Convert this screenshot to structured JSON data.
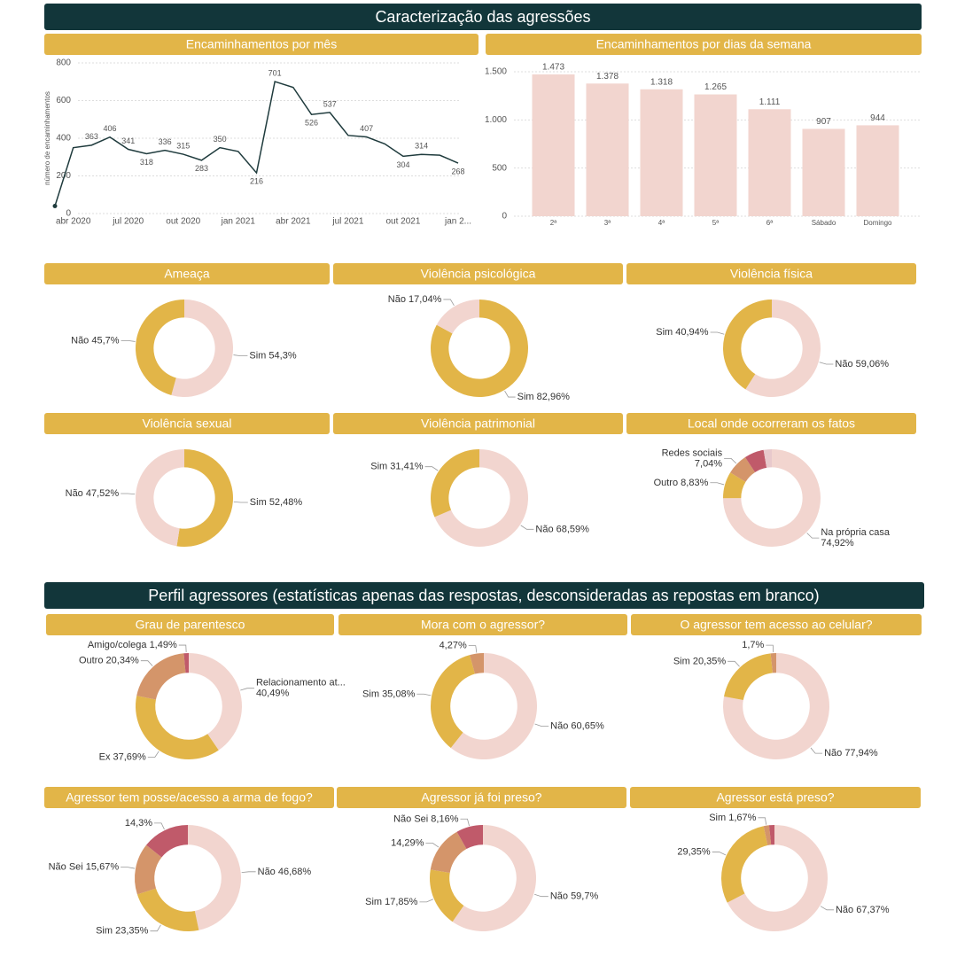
{
  "sections": [
    "Caracterização das agressões",
    "Perfil agressores (estatísticas apenas das respostas, desconsideradas as repostas em branco)"
  ],
  "chart_data": [
    {
      "type": "line",
      "title": "Encaminhamentos por mês",
      "ylabel": "número de encaminhamentos",
      "categories": [
        null,
        "abr 2020",
        null,
        null,
        "jul 2020",
        null,
        null,
        "out 2020",
        null,
        null,
        "jan 2021",
        null,
        null,
        "abr 2021",
        null,
        null,
        "jul 2021",
        null,
        null,
        "out 2021",
        null,
        null,
        "jan 2..."
      ],
      "values": [
        40,
        350,
        363,
        406,
        341,
        318,
        336,
        315,
        283,
        350,
        330,
        216,
        701,
        670,
        526,
        537,
        415,
        407,
        370,
        304,
        314,
        310,
        268
      ],
      "value_labels": [
        null,
        null,
        "363",
        "406",
        "341",
        "318",
        "336",
        "315",
        "283",
        "350",
        null,
        "216",
        "701",
        null,
        "526",
        "537",
        null,
        "407",
        null,
        "304",
        "314",
        null,
        "268"
      ],
      "ylim": [
        0,
        800
      ],
      "yticks": [
        0,
        200,
        400,
        600,
        800
      ],
      "grid": true,
      "color": "#1f3b3d"
    },
    {
      "type": "bar",
      "title": "Encaminhamentos por dias da semana",
      "categories": [
        "2ª",
        "3ª",
        "4ª",
        "5ª",
        "6ª",
        "Sábado",
        "Domingo"
      ],
      "values": [
        1473,
        1378,
        1318,
        1265,
        1111,
        907,
        944
      ],
      "value_labels": [
        "1.473",
        "1.378",
        "1.318",
        "1.265",
        "1.111",
        "907",
        "944"
      ],
      "ylim": [
        0,
        1500
      ],
      "yticks": [
        0,
        500,
        {
          "value": 1000,
          "label": "1.000"
        },
        {
          "value": 1500,
          "label": "1.500"
        }
      ],
      "grid": true,
      "color": "#f2d5cf"
    },
    {
      "type": "pie",
      "donut": true,
      "title": "Ameaça",
      "categories": [
        "Sim",
        "Não"
      ],
      "values": [
        54.3,
        45.7
      ],
      "value_labels": [
        "54,3%",
        "45,7%"
      ],
      "colors": [
        "#f2d5cf",
        "#e2b548"
      ]
    },
    {
      "type": "pie",
      "donut": true,
      "title": "Violência psicológica",
      "categories": [
        "Sim",
        "Não"
      ],
      "values": [
        82.96,
        17.04
      ],
      "value_labels": [
        "82,96%",
        "17,04%"
      ],
      "colors": [
        "#e2b548",
        "#f2d5cf"
      ]
    },
    {
      "type": "pie",
      "donut": true,
      "title": "Violência física",
      "categories": [
        "Não",
        "Sim"
      ],
      "values": [
        59.06,
        40.94
      ],
      "value_labels": [
        "59,06%",
        "40,94%"
      ],
      "colors": [
        "#f2d5cf",
        "#e2b548"
      ]
    },
    {
      "type": "pie",
      "donut": true,
      "title": "Violência sexual",
      "categories": [
        "Sim",
        "Não"
      ],
      "values": [
        52.48,
        47.52
      ],
      "value_labels": [
        "52,48%",
        "47,52%"
      ],
      "colors": [
        "#e2b548",
        "#f2d5cf"
      ]
    },
    {
      "type": "pie",
      "donut": true,
      "title": "Violência patrimonial",
      "categories": [
        "Não",
        "Sim"
      ],
      "values": [
        68.59,
        31.41
      ],
      "value_labels": [
        "68,59%",
        "31,41%"
      ],
      "colors": [
        "#f2d5cf",
        "#e2b548"
      ]
    },
    {
      "type": "pie",
      "donut": true,
      "title": "Local onde ocorreram os fatos",
      "categories": [
        "Na própria casa",
        "Outro",
        "Redes sociais",
        null,
        null
      ],
      "values": [
        74.92,
        8.83,
        7.04,
        6.5,
        2.71
      ],
      "value_labels": [
        "74,92%",
        "8,83%",
        "7,04%",
        null,
        null
      ],
      "colors": [
        "#f2d5cf",
        "#e2b548",
        "#d4956a",
        "#c05a6a",
        "#e8c9cc"
      ]
    },
    {
      "type": "pie",
      "donut": true,
      "title": "Grau de parentesco",
      "categories": [
        "Relacionamento at...",
        "Ex",
        "Outro",
        "Amigo/colega"
      ],
      "values": [
        40.49,
        37.69,
        20.34,
        1.49
      ],
      "value_labels": [
        "40,49%",
        "37,69%",
        "20,34%",
        "1,49%"
      ],
      "colors": [
        "#f2d5cf",
        "#e2b548",
        "#d4956a",
        "#c05a6a"
      ]
    },
    {
      "type": "pie",
      "donut": true,
      "title": "Mora com o agressor?",
      "categories": [
        "Não",
        "Sim",
        null
      ],
      "values": [
        60.65,
        35.08,
        4.27
      ],
      "value_labels": [
        "60,65%",
        "35,08%",
        "4,27%"
      ],
      "colors": [
        "#f2d5cf",
        "#e2b548",
        "#d4956a"
      ]
    },
    {
      "type": "pie",
      "donut": true,
      "title": "O agressor tem acesso ao celular?",
      "categories": [
        "Não",
        "Sim",
        null
      ],
      "values": [
        77.94,
        20.35,
        1.7
      ],
      "value_labels": [
        "77,94%",
        "20,35%",
        "1,7%"
      ],
      "colors": [
        "#f2d5cf",
        "#e2b548",
        "#d4956a"
      ]
    },
    {
      "type": "pie",
      "donut": true,
      "title": "Agressor tem posse/acesso a arma de fogo?",
      "categories": [
        "Não",
        "Sim",
        "Não Sei",
        null
      ],
      "values": [
        46.68,
        23.35,
        15.67,
        14.3
      ],
      "value_labels": [
        "46,68%",
        "23,35%",
        "15,67%",
        "14,3%"
      ],
      "colors": [
        "#f2d5cf",
        "#e2b548",
        "#d4956a",
        "#c05a6a"
      ]
    },
    {
      "type": "pie",
      "donut": true,
      "title": "Agressor já foi preso?",
      "categories": [
        "Não",
        "Sim",
        null,
        "Não Sei"
      ],
      "values": [
        59.7,
        17.85,
        14.29,
        8.16
      ],
      "value_labels": [
        "59,7%",
        "17,85%",
        "14,29%",
        "8,16%"
      ],
      "colors": [
        "#f2d5cf",
        "#e2b548",
        "#d4956a",
        "#c05a6a"
      ]
    },
    {
      "type": "pie",
      "donut": true,
      "title": "Agressor está preso?",
      "categories": [
        "Não",
        null,
        "Sim",
        null
      ],
      "values": [
        67.37,
        29.35,
        1.67,
        1.61
      ],
      "value_labels": [
        "67,37%",
        "29,35%",
        "1,67%",
        null
      ],
      "colors": [
        "#f2d5cf",
        "#e2b548",
        "#d4956a",
        "#c05a6a"
      ]
    }
  ]
}
